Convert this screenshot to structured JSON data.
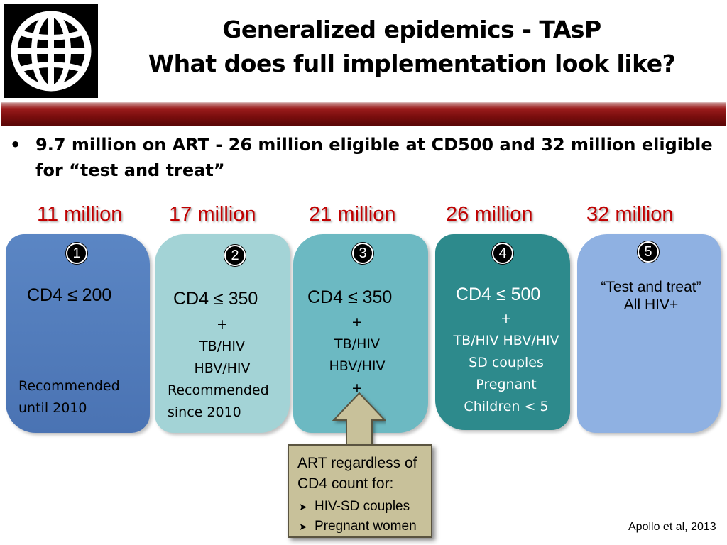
{
  "title": {
    "line1": "Generalized epidemics - TAsP",
    "line2": "What does full implementation look like?"
  },
  "bullet": {
    "glyph": "•",
    "text": "9.7 million on ART - 26 million eligible at CD500 and 32 million eligible for “test and treat”"
  },
  "millions": [
    "11 million",
    "17 million",
    "21 million",
    "26 million",
    "32 million"
  ],
  "columns": [
    {
      "num": "1",
      "headline": "CD4 ≤ 200",
      "details": [],
      "note": [
        "Recommended",
        "until 2010"
      ]
    },
    {
      "num": "2",
      "headline": "CD4 ≤ 350",
      "details": [
        "+",
        "TB/HIV",
        "HBV/HIV"
      ],
      "note": [
        "Recommended",
        "since 2010"
      ]
    },
    {
      "num": "3",
      "headline": "CD4 ≤ 350",
      "details": [
        "+",
        "TB/HIV",
        "HBV/HIV",
        "+"
      ],
      "note": []
    },
    {
      "num": "4",
      "headline": "CD4 ≤ 500",
      "details": [
        "+",
        "TB/HIV  HBV/HIV",
        "SD couples",
        "Pregnant",
        "Children < 5"
      ],
      "note": []
    },
    {
      "num": "5",
      "headline": "“Test and treat”",
      "details": [
        "All HIV+"
      ],
      "note": []
    }
  ],
  "callout": {
    "heading_line1": "ART regardless of",
    "heading_line2": "CD4 count for:",
    "items": [
      "HIV-SD  couples",
      "Pregnant women"
    ]
  },
  "citation": "Apollo et al, 2013",
  "colors": {
    "title_bar": "#7a0e0e",
    "million_text": "#c00000",
    "box1": "#4f7bbd",
    "box2": "#a3d3d6",
    "box3": "#6cb9c2",
    "box4": "#2d8a8c",
    "box5": "#8fb1e2",
    "callout": "#c8c19a"
  },
  "icons": {
    "logo": "globe-logo-icon",
    "callout_bullet": "chevron-right-icon",
    "arrow": "up-arrow-icon"
  }
}
